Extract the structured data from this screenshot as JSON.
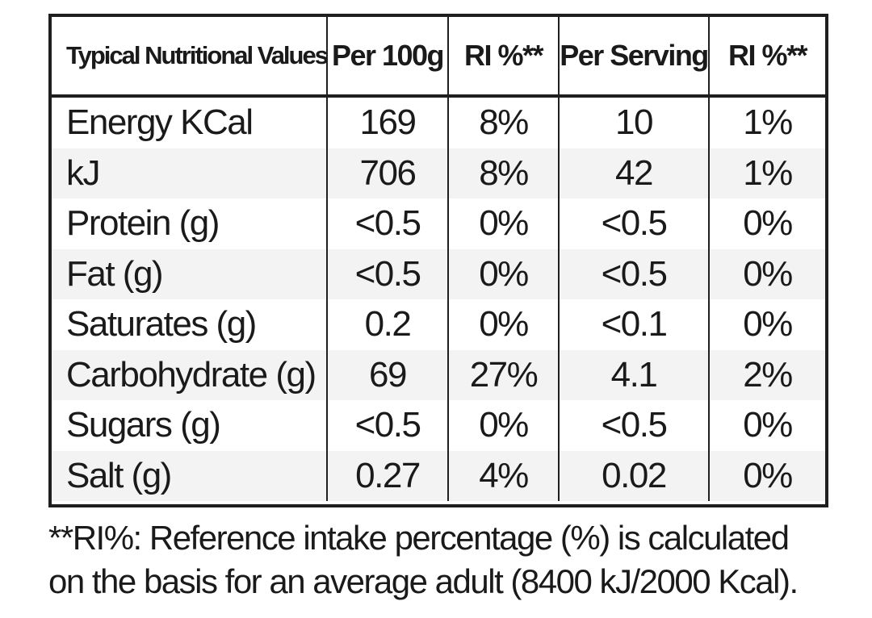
{
  "table": {
    "headers": [
      "Typical Nutritional Values",
      "Per 100g",
      "RI %**",
      "Per Serving",
      "RI %**"
    ],
    "rows": [
      {
        "nutrient": "Energy KCal",
        "per_100g": "169",
        "ri_100g": "8%",
        "per_serving": "10",
        "ri_serving": "1%"
      },
      {
        "nutrient": "kJ",
        "per_100g": "706",
        "ri_100g": "8%",
        "per_serving": "42",
        "ri_serving": "1%"
      },
      {
        "nutrient": "Protein (g)",
        "per_100g": "<0.5",
        "ri_100g": "0%",
        "per_serving": "<0.5",
        "ri_serving": "0%"
      },
      {
        "nutrient": "Fat (g)",
        "per_100g": "<0.5",
        "ri_100g": "0%",
        "per_serving": "<0.5",
        "ri_serving": "0%"
      },
      {
        "nutrient": "Saturates (g)",
        "per_100g": "0.2",
        "ri_100g": "0%",
        "per_serving": "<0.1",
        "ri_serving": "0%"
      },
      {
        "nutrient": "Carbohydrate (g)",
        "per_100g": "69",
        "ri_100g": "27%",
        "per_serving": "4.1",
        "ri_serving": "2%"
      },
      {
        "nutrient": "Sugars (g)",
        "per_100g": "<0.5",
        "ri_100g": "0%",
        "per_serving": "<0.5",
        "ri_serving": "0%"
      },
      {
        "nutrient": "Salt (g)",
        "per_100g": "0.27",
        "ri_100g": "4%",
        "per_serving": "0.02",
        "ri_serving": "0%"
      }
    ]
  },
  "footnote": {
    "line1": "**RI%: Reference intake percentage (%) is calculated",
    "line2": "on the basis for an average adult (8400 kJ/2000 Kcal)."
  }
}
